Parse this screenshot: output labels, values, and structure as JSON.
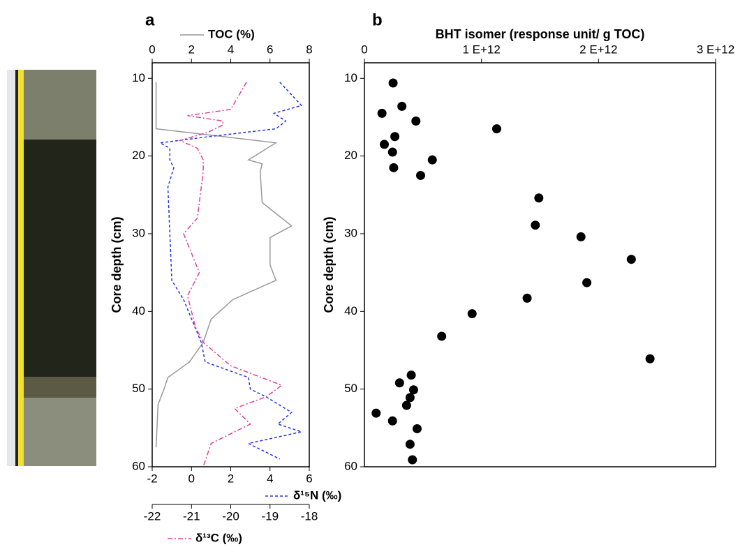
{
  "chart_data": [
    {
      "type": "line",
      "label": "a",
      "ylabel": "Core depth (cm)",
      "ylim": [
        8,
        60
      ],
      "y_inverted": true,
      "yticks": [
        10,
        20,
        30,
        40,
        50,
        60
      ],
      "xlim": [
        0,
        8
      ],
      "xticks": [
        0,
        2,
        4,
        6,
        8
      ],
      "x2lim": [
        -2,
        6
      ],
      "x2ticks": [
        -2,
        0,
        2,
        4,
        6
      ],
      "x3lim": [
        -22,
        -18
      ],
      "x3ticks": [
        -22,
        -21,
        -20,
        -19,
        -18
      ],
      "series": [
        {
          "name": "TOC (%)",
          "color": "#999999",
          "axis": "x",
          "dash": "solid",
          "x": [
            0.2,
            0.2,
            3.6,
            6.3,
            4.9,
            5.6,
            5.5,
            5.6,
            7.1,
            6.0,
            6.0,
            6.3,
            4.1,
            3.0,
            2.6,
            1.9,
            0.8,
            0.6,
            0.3,
            0.2
          ],
          "y": [
            10.5,
            16.5,
            17.5,
            18.3,
            20.5,
            21,
            22,
            26,
            29,
            30.5,
            34,
            36,
            38.5,
            41,
            44,
            46.5,
            48.5,
            50,
            52,
            57.5
          ]
        },
        {
          "name": "δ¹⁵N (‰)",
          "color": "#2233ee",
          "axis": "x2",
          "dash": "dashed",
          "x": [
            4.5,
            5.6,
            4.2,
            4.8,
            4.3,
            0.9,
            -1.6,
            -1.1,
            -1.1,
            -0.9,
            -1.2,
            -1.1,
            -1.0,
            -0.4,
            0.5,
            0.7,
            2.9,
            3.0,
            3.8,
            5.1,
            4.4,
            5.6,
            2.9,
            4.5
          ],
          "y": [
            10.5,
            13.5,
            14.5,
            15.5,
            16.5,
            17.5,
            18.3,
            19,
            20.5,
            21.5,
            24,
            30,
            36,
            38.5,
            44,
            46.5,
            48.5,
            50,
            51,
            53,
            54.5,
            55.5,
            57,
            59
          ]
        },
        {
          "name": "δ¹³C (‰)",
          "color": "#e0409a",
          "axis": "x3",
          "dash": "dashdot",
          "x": [
            -19.6,
            -20.0,
            -21.1,
            -20.2,
            -20.2,
            -20.6,
            -21.3,
            -20.85,
            -20.7,
            -20.7,
            -20.85,
            -21.2,
            -20.8,
            -21.1,
            -20.9,
            -20.7,
            -20.0,
            -18.7,
            -19.1,
            -19.9,
            -19.5,
            -20.5,
            -20.7
          ],
          "y": [
            10.5,
            14,
            14.8,
            15.5,
            16,
            17,
            18,
            19,
            20.5,
            22,
            28,
            30,
            35,
            38,
            42,
            44,
            47,
            49.5,
            51,
            52.5,
            54.5,
            57,
            60
          ]
        }
      ]
    },
    {
      "type": "scatter",
      "label": "b",
      "ylabel": "Core depth (cm)",
      "xlabel": "BHT isomer (response unit/ g TOC)",
      "ylim": [
        8,
        60
      ],
      "y_inverted": true,
      "yticks": [
        10,
        20,
        30,
        40,
        50,
        60
      ],
      "xlim": [
        0,
        3000000000000
      ],
      "xticks": [
        0,
        {
          "value": 1000000000000,
          "label": "1 E+12"
        },
        {
          "value": 2000000000000,
          "label": "2 E+12"
        },
        {
          "value": 3000000000000,
          "label": "3 E+12"
        }
      ],
      "color": "#000000",
      "x": [
        245000000000,
        150000000000,
        320000000000,
        440000000000,
        1130000000000,
        260000000000,
        170000000000,
        240000000000,
        580000000000,
        250000000000,
        480000000000,
        1490000000000,
        1460000000000,
        1850000000000,
        2280000000000,
        1900000000000,
        1390000000000,
        920000000000,
        660000000000,
        2440000000000,
        400000000000,
        300000000000,
        420000000000,
        390000000000,
        360000000000,
        100000000000,
        240000000000,
        450000000000,
        390000000000,
        410000000000
      ],
      "y": [
        10.6,
        14.5,
        13.6,
        15.5,
        16.5,
        17.5,
        18.5,
        19.5,
        20.5,
        21.5,
        22.5,
        25.4,
        28.9,
        30.4,
        33.3,
        36.3,
        38.3,
        40.3,
        43.2,
        46.1,
        48.2,
        49.2,
        50.1,
        51.1,
        52.1,
        53.1,
        54.1,
        55.1,
        57.1,
        59.1
      ]
    }
  ]
}
